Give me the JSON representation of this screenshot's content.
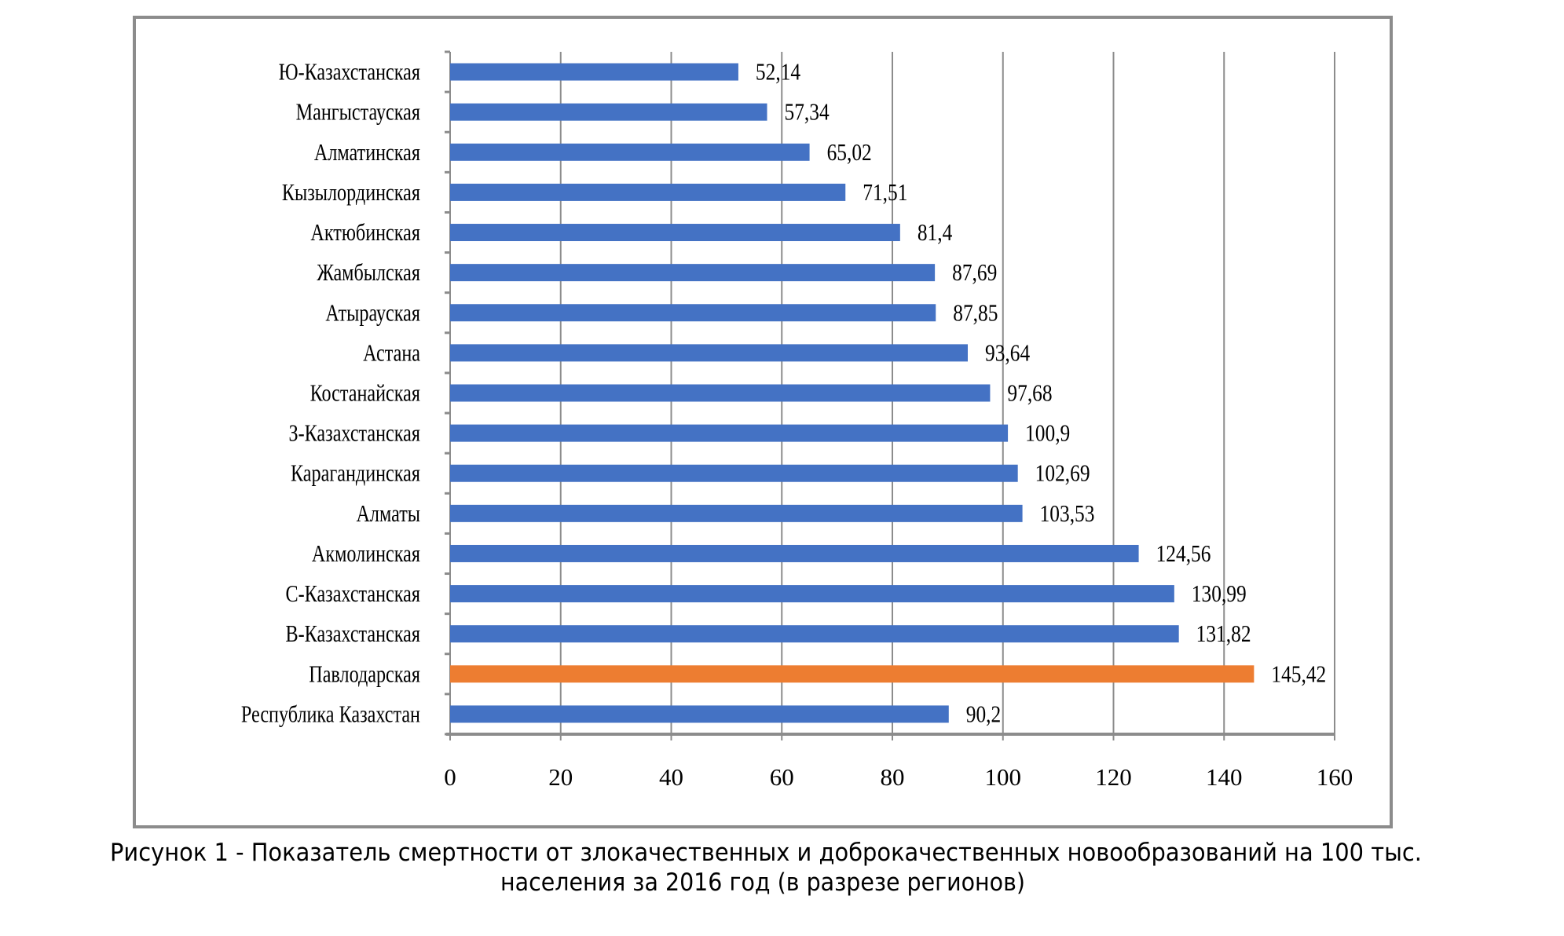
{
  "chart_data": {
    "type": "bar",
    "orientation": "horizontal",
    "categories": [
      "Ю-Казахстанская",
      "Мангыстауская",
      "Алматинская",
      "Кызылординская",
      "Актюбинская",
      "Жамбылская",
      "Атырауская",
      "Астана",
      "Костанайская",
      "З-Казахстанская",
      "Карагандинская",
      "Алматы",
      "Акмолинская",
      "С-Казахстанская",
      "В-Казахстанская",
      "Павлодарская",
      "Республика Казахстан"
    ],
    "values": [
      52.14,
      57.34,
      65.02,
      71.51,
      81.4,
      87.69,
      87.85,
      93.64,
      97.68,
      100.9,
      102.69,
      103.53,
      124.56,
      130.99,
      131.82,
      145.42,
      90.2
    ],
    "data_labels": [
      "52,14",
      "57,34",
      "65,02",
      "71,51",
      "81,4",
      "87,69",
      "87,85",
      "93,64",
      "97,68",
      "100,9",
      "102,69",
      "103,53",
      "124,56",
      "130,99",
      "131,82",
      "145,42",
      "90,2"
    ],
    "highlight_category": "Павлодарская",
    "colors": {
      "default": "#4472C4",
      "highlight": "#ED7D31",
      "grid": "#8C8C8C",
      "frame": "#8C8C8C"
    },
    "xlim": [
      0,
      160
    ],
    "xticks": [
      "0",
      "20",
      "40",
      "60",
      "80",
      "100",
      "120",
      "140",
      "160"
    ],
    "grid": true,
    "legend": "none",
    "title": "",
    "xlabel": "",
    "ylabel": ""
  },
  "caption": {
    "line1": "Рисунок 1 - Показатель смертности от злокачественных и доброкачественных новообразований на 100 тыс.",
    "line2": "населения за 2016 год (в разрезе регионов)"
  }
}
